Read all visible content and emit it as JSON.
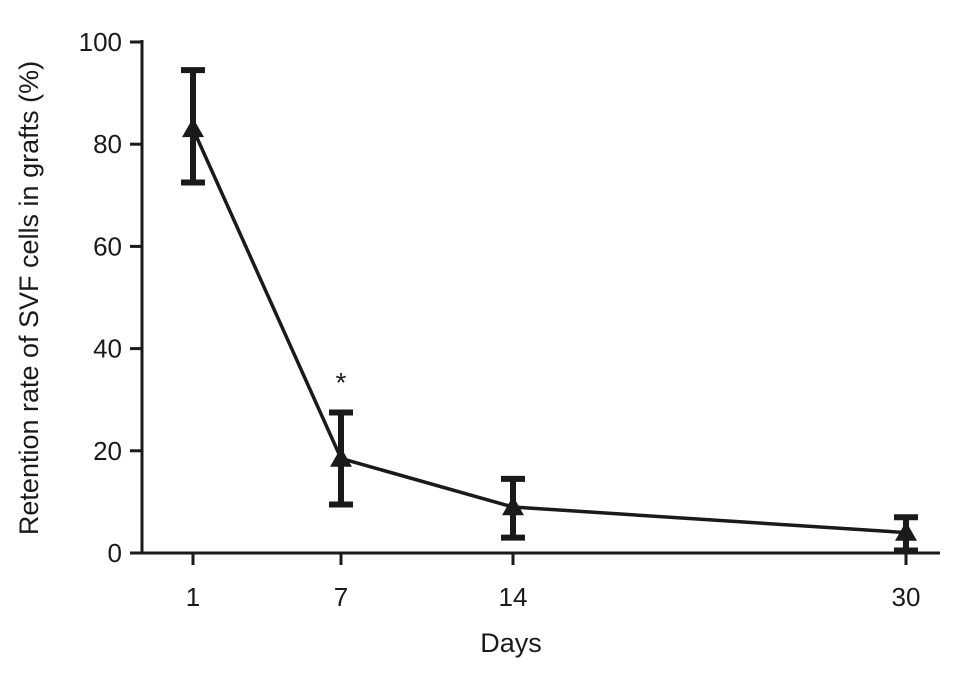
{
  "chart_data": {
    "type": "line",
    "xlabel": "Days",
    "ylabel": "Retention rate of SVF cells in grafts (%)",
    "ylim": [
      0,
      100
    ],
    "yticks": [
      0,
      20,
      40,
      60,
      80,
      100
    ],
    "x_categories": [
      "1",
      "7",
      "14",
      "30"
    ],
    "x": [
      1,
      7,
      14,
      30
    ],
    "series": [
      {
        "marker": "triangle",
        "color": "#1a1a1a",
        "values": [
          83,
          18.5,
          9,
          4
        ],
        "error_upper": [
          94.5,
          27.5,
          14.5,
          7
        ],
        "error_lower": [
          72.5,
          9.5,
          3,
          0.5
        ]
      }
    ],
    "annotations": [
      {
        "text": "*",
        "x": 7
      }
    ],
    "grid": false,
    "legend": "none"
  }
}
